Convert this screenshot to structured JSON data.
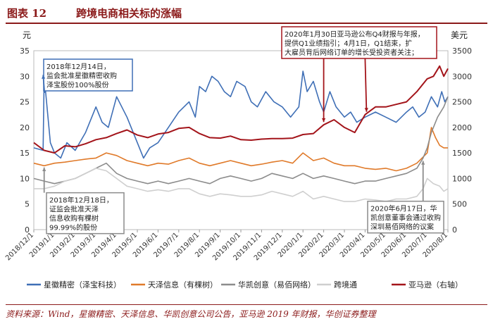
{
  "figure": {
    "number": "图表 12",
    "title": "跨境电商相关标的涨幅",
    "source": "资料来源：Wind，星徽精密、天泽信息、华凯创意公司公告，亚马逊 2019 年财报，华创证券整理"
  },
  "chart_data": {
    "type": "line",
    "left_axis": {
      "label": "元",
      "ylim": [
        0,
        35
      ],
      "ticks": [
        0,
        5,
        10,
        15,
        20,
        25,
        30,
        35
      ]
    },
    "right_axis": {
      "label": "美元",
      "ylim": [
        0,
        3500
      ],
      "ticks": [
        0,
        500,
        1000,
        1500,
        2000,
        2500,
        3000,
        3500
      ]
    },
    "x_range": [
      0,
      20
    ],
    "x_ticks": [
      "2018/12/1",
      "2019/1/1",
      "2019/2/1",
      "2019/3/1",
      "2019/4/1",
      "2019/5/1",
      "2019/6/1",
      "2019/7/1",
      "2019/8/1",
      "2019/9/1",
      "2019/10/1",
      "2019/11/1",
      "2019/12/1",
      "2020/1/1",
      "2020/2/1",
      "2020/3/1",
      "2020/4/1",
      "2020/5/1",
      "2020/6/1",
      "2020/7/1",
      "2020/8/1"
    ],
    "series": [
      {
        "name": "星徽精密（泽宝科技）",
        "axis": "left",
        "color": "#3f6fb6",
        "x": [
          0,
          0.45,
          0.5,
          0.8,
          1.0,
          1.3,
          1.6,
          2.0,
          2.5,
          3.0,
          3.3,
          3.6,
          4.0,
          4.5,
          5.0,
          5.3,
          5.6,
          6.0,
          6.5,
          7.0,
          7.5,
          7.8,
          8.0,
          8.3,
          8.6,
          8.9,
          9.2,
          9.5,
          9.8,
          10.2,
          10.5,
          10.8,
          11.2,
          11.6,
          12.0,
          12.4,
          12.8,
          13.0,
          13.2,
          13.5,
          13.8,
          14.0,
          14.3,
          14.6,
          15.0,
          15.3,
          15.6,
          16.0,
          16.5,
          17.0,
          17.5,
          18.0,
          18.3,
          18.6,
          18.9,
          19.2,
          19.5,
          19.7,
          19.85,
          20.0
        ],
        "values": [
          16,
          15.5,
          30,
          17,
          15,
          14,
          17,
          15.5,
          19,
          24,
          21,
          20,
          26,
          22,
          17,
          14,
          16,
          17,
          20,
          23,
          25,
          22,
          28,
          27,
          30,
          29,
          27,
          26,
          29,
          28,
          25,
          24,
          27,
          25,
          24,
          22,
          24,
          31,
          27,
          29,
          25,
          23,
          27,
          24,
          22,
          23,
          21,
          22,
          23,
          22,
          21,
          23,
          24,
          22,
          23,
          26,
          24,
          27,
          25,
          26
        ]
      },
      {
        "name": "天泽信息（有棵树）",
        "axis": "left",
        "color": "#e07a2a",
        "x": [
          0,
          0.5,
          1.0,
          1.5,
          2.0,
          2.5,
          3.0,
          3.5,
          4.0,
          4.5,
          5.0,
          5.5,
          6.0,
          6.5,
          7.0,
          7.5,
          8.0,
          8.5,
          9.0,
          9.5,
          10.0,
          10.5,
          11.0,
          11.5,
          12.0,
          12.5,
          13.0,
          13.5,
          14.0,
          14.5,
          15.0,
          15.5,
          16.0,
          16.5,
          17.0,
          17.5,
          18.0,
          18.5,
          19.0,
          19.2,
          19.4,
          19.6,
          19.8,
          20.0
        ],
        "values": [
          13,
          12.5,
          13,
          13.2,
          13.5,
          13.8,
          14,
          15,
          14.5,
          13.5,
          13,
          12.5,
          13,
          12.8,
          13.5,
          14,
          13,
          12.5,
          13,
          13.5,
          13,
          12.5,
          12.8,
          13.2,
          13.5,
          13,
          15,
          13.5,
          14,
          13,
          12.5,
          12.5,
          12,
          11.8,
          12,
          11.5,
          12,
          13,
          15,
          20,
          18,
          16.5,
          16,
          16
        ]
      },
      {
        "name": "华凯创意（易佰网络）",
        "axis": "left",
        "color": "#8c8c8c",
        "x": [
          0,
          0.5,
          1.0,
          1.5,
          2.0,
          2.5,
          3.0,
          3.5,
          4.0,
          4.5,
          5.0,
          5.5,
          6.0,
          6.5,
          7.0,
          7.5,
          8.0,
          8.5,
          9.0,
          9.5,
          10.0,
          10.5,
          11.0,
          11.5,
          12.0,
          12.5,
          13.0,
          13.5,
          14.0,
          14.5,
          15.0,
          15.5,
          16.0,
          16.5,
          17.0,
          17.5,
          18.0,
          18.5,
          18.8,
          19.0,
          19.2,
          19.5,
          19.8,
          20.0
        ],
        "values": [
          10,
          9.5,
          9,
          9.5,
          10,
          11,
          12,
          13,
          11,
          10,
          9.5,
          9,
          9.5,
          9,
          9.5,
          10,
          9.5,
          9,
          10,
          10.5,
          10,
          9.5,
          10,
          11,
          10.5,
          10,
          11,
          10,
          10.5,
          10,
          9.5,
          9,
          9.5,
          9.5,
          10,
          10.5,
          11,
          12,
          14,
          16,
          19,
          22,
          24,
          26
        ]
      },
      {
        "name": "跨境通",
        "axis": "left",
        "color": "#cfcfcf",
        "x": [
          0,
          0.5,
          1.0,
          1.5,
          2.0,
          2.5,
          3.0,
          3.5,
          4.0,
          4.5,
          5.0,
          5.5,
          6.0,
          6.5,
          7.0,
          7.5,
          8.0,
          8.5,
          9.0,
          9.5,
          10.0,
          10.5,
          11.0,
          11.5,
          12.0,
          12.5,
          13.0,
          13.5,
          14.0,
          14.5,
          15.0,
          15.5,
          16.0,
          16.5,
          17.0,
          17.5,
          18.0,
          18.5,
          18.8,
          19.0,
          19.3,
          19.6,
          19.8,
          20.0
        ],
        "values": [
          8,
          8,
          8.5,
          9.5,
          10,
          11,
          12,
          11.5,
          10,
          8.5,
          8,
          7.5,
          7.8,
          7.5,
          8,
          8,
          7,
          6.5,
          7,
          6.8,
          6.5,
          6.5,
          6.8,
          7.5,
          7,
          6.5,
          7.5,
          6,
          6.5,
          6,
          5.5,
          5.5,
          6,
          5.8,
          5.5,
          6,
          6,
          6.5,
          8,
          10,
          9,
          8.5,
          7.5,
          8
        ]
      },
      {
        "name": "亚马逊（右轴）",
        "axis": "right",
        "color": "#a3141a",
        "x": [
          0,
          0.5,
          1.0,
          1.5,
          2.0,
          2.5,
          3.0,
          3.5,
          4.0,
          4.5,
          5.0,
          5.5,
          6.0,
          6.5,
          7.0,
          7.5,
          8.0,
          8.5,
          9.0,
          9.5,
          10.0,
          10.5,
          11.0,
          11.5,
          12.0,
          12.5,
          13.0,
          13.5,
          14.0,
          14.5,
          15.0,
          15.5,
          16.0,
          16.5,
          17.0,
          17.5,
          18.0,
          18.5,
          19.0,
          19.3,
          19.6,
          19.8,
          20.0
        ],
        "values": [
          1700,
          1550,
          1500,
          1640,
          1620,
          1680,
          1760,
          1800,
          1880,
          1950,
          1850,
          1800,
          1870,
          1900,
          1980,
          2000,
          1880,
          1800,
          1790,
          1830,
          1760,
          1750,
          1770,
          1780,
          1780,
          1790,
          1860,
          1880,
          2050,
          2150,
          2000,
          1900,
          2250,
          2400,
          2400,
          2450,
          2500,
          2700,
          2950,
          3000,
          3200,
          3000,
          3150
        ]
      }
    ],
    "annotations": [
      {
        "text": [
          "2018年12月14日，",
          "监会批准星徽精密收购",
          "泽宝股份100%股份"
        ],
        "x": 0.45,
        "value": 30,
        "axis": "left"
      },
      {
        "text": [
          "2018年12月18日，",
          "证监会批准天泽",
          "信息收购有棵树",
          "99.99%的股份"
        ],
        "x": 0.5,
        "value": 13,
        "axis": "left"
      },
      {
        "text": [
          "2020年1月30日亚马逊公布Q4财报与年报，",
          "提供Q1业绩指引；4月1日，Q1结束，扩",
          "大雇员背后网络订单的增长受投资者关注；"
        ],
        "x": 14.0,
        "value": 2050,
        "axis": "right",
        "x2": 16.0,
        "value2": 2250
      },
      {
        "text": [
          "2020年6月17日，华",
          "凯创意董事会通过收购",
          "深圳易佰网络的议案"
        ],
        "x": 18.8,
        "value": 14,
        "axis": "left"
      }
    ]
  }
}
